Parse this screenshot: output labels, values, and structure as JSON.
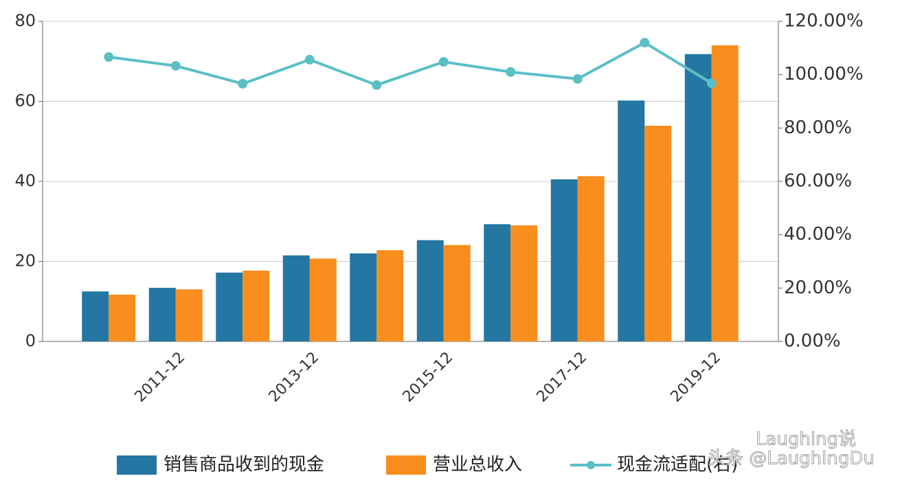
{
  "chart_data": {
    "type": "bar",
    "categories": [
      null,
      "2011-12",
      null,
      "2013-12",
      null,
      "2015-12",
      null,
      "2017-12",
      null,
      "2019-12"
    ],
    "series": [
      {
        "name": "销售商品收到的现金",
        "color": "#2477a2",
        "type": "bar",
        "values": [
          12.5,
          13.4,
          17.2,
          21.5,
          22,
          25.3,
          29.3,
          40.5,
          60.2,
          71.8
        ]
      },
      {
        "name": "营业总收入",
        "color": "#f98e1e",
        "type": "bar",
        "values": [
          11.7,
          13,
          17.7,
          20.7,
          22.8,
          24.1,
          29,
          41.3,
          53.9,
          74
        ]
      },
      {
        "name": "现金流适配(右)",
        "color": "#5bbfc6",
        "type": "line",
        "axis": "y2",
        "values": [
          106.6,
          103.3,
          96.6,
          105.6,
          96.1,
          104.8,
          101,
          98.4,
          112,
          96.8
        ]
      }
    ],
    "ylim": [
      0,
      80
    ],
    "yticks": [
      0,
      20,
      40,
      60,
      80
    ],
    "y2lim": [
      0,
      120
    ],
    "y2ticks": [
      {
        "value": 0,
        "label": "0.00%"
      },
      {
        "value": 20,
        "label": "20.00%"
      },
      {
        "value": 40,
        "label": "40.00%"
      },
      {
        "value": 60,
        "label": "60.00%"
      },
      {
        "value": 80,
        "label": "80.00%"
      },
      {
        "value": 100,
        "label": "100.00%"
      },
      {
        "value": 120,
        "label": "120.00%"
      }
    ],
    "grid": true,
    "legend": "bottom",
    "annotations": [
      "Laughing说",
      "头条 @LaughingDu"
    ]
  }
}
